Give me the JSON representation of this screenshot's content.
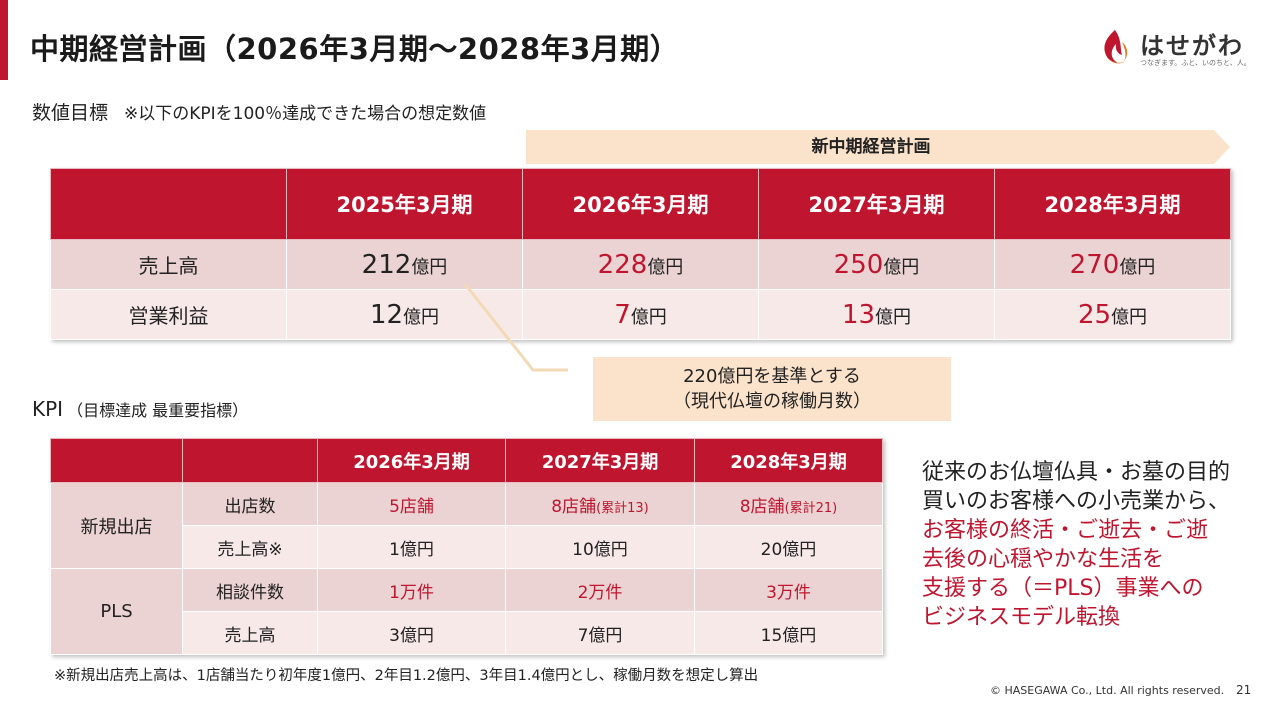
{
  "slide": {
    "title": "中期経営計画（2026年3月期～2028年3月期）",
    "accent_color": "#c0152f"
  },
  "logo": {
    "name": "はせがわ",
    "tagline": "つなぎます。ふと、いのちと、人。",
    "icon": "flame-logo-icon"
  },
  "section1": {
    "heading": "数値目標",
    "note": "※以下のKPIを100％達成できた場合の想定数値",
    "plan_label": "新中期経営計画",
    "columns": [
      "2025年3月期",
      "2026年3月期",
      "2027年3月期",
      "2028年3月期"
    ],
    "rows": [
      {
        "label": "売上高",
        "values": [
          {
            "num": "212",
            "unit": "億円"
          },
          {
            "num": "228",
            "unit": "億円"
          },
          {
            "num": "250",
            "unit": "億円"
          },
          {
            "num": "270",
            "unit": "億円"
          }
        ]
      },
      {
        "label": "営業利益",
        "values": [
          {
            "num": "12",
            "unit": "億円"
          },
          {
            "num": "7",
            "unit": "億円"
          },
          {
            "num": "13",
            "unit": "億円"
          },
          {
            "num": "25",
            "unit": "億円"
          }
        ]
      }
    ],
    "callout": {
      "line1": "220億円を基準とする",
      "line2": "（現代仏壇の稼働月数）"
    }
  },
  "section2": {
    "heading": "KPI",
    "sub": "（目標達成 最重要指標）",
    "columns": [
      "2026年3月期",
      "2027年3月期",
      "2028年3月期"
    ],
    "groups": [
      {
        "name": "新規出店",
        "rows": [
          {
            "label": "出店数",
            "values": [
              {
                "main": "5店舗",
                "extra": ""
              },
              {
                "main": "8店舗",
                "extra": "(累計13)"
              },
              {
                "main": "8店舗",
                "extra": "(累計21)"
              }
            ]
          },
          {
            "label": "売上高※",
            "values": [
              {
                "main": "1億円",
                "extra": ""
              },
              {
                "main": "10億円",
                "extra": ""
              },
              {
                "main": "20億円",
                "extra": ""
              }
            ]
          }
        ]
      },
      {
        "name": "PLS",
        "rows": [
          {
            "label": "相談件数",
            "values": [
              {
                "main": "1万件",
                "extra": ""
              },
              {
                "main": "2万件",
                "extra": ""
              },
              {
                "main": "3万件",
                "extra": ""
              }
            ]
          },
          {
            "label": "売上高",
            "values": [
              {
                "main": "3億円",
                "extra": ""
              },
              {
                "main": "7億円",
                "extra": ""
              },
              {
                "main": "15億円",
                "extra": ""
              }
            ]
          }
        ]
      }
    ]
  },
  "side_text": {
    "line1": "従来のお仏壇仏具・お墓の目的",
    "line2": "買いのお客様への小売業から、",
    "line3": "お客様の終活・ご逝去・ご逝",
    "line4": "去後の心穏やかな生活を",
    "line5": "支援する（＝PLS）事業への",
    "line6": "ビジネスモデル転換"
  },
  "footnote": "※新規出店売上高は、1店舗当たり初年度1億円、2年目1.2億円、3年目1.4億円とし、稼働月数を想定し算出",
  "footer": {
    "copyright": "© HASEGAWA Co., Ltd. All rights reserved.",
    "page": "21"
  }
}
